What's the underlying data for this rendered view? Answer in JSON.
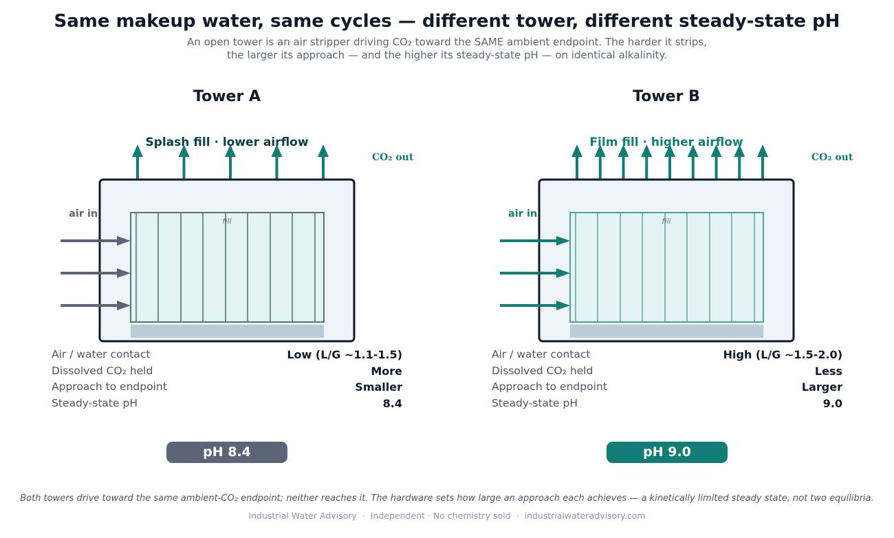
{
  "header": {
    "title": "Same makeup water, same cycles — different tower, different steady-state pH",
    "subtitle_line1": "An open tower is an air stripper driving CO₂ toward the SAME ambient endpoint. The harder it strips,",
    "subtitle_line2": "the larger its approach — and the higher its steady-state pH — on identical alkalinity."
  },
  "colors": {
    "navy": "#0f1b2d",
    "teal": "#127c77",
    "slate": "#5a6577",
    "tower_fill": "#eff4f8",
    "fill_media": "#e4f3f3",
    "basin": "#b9ccd8"
  },
  "towers": [
    {
      "name": "Tower A",
      "fill_caption": "Splash fill · lower airflow",
      "air_in_label": "air in",
      "co2_out_label": "CO₂ out",
      "fill_label": "fill",
      "co2_out_arrow_count": 5,
      "air_in_arrow_count": 3,
      "stats": [
        {
          "label": "Air / water contact",
          "value": "Low (L/G ~1.1-1.5)"
        },
        {
          "label": "Dissolved CO₂ held",
          "value": "More"
        },
        {
          "label": "Approach to endpoint",
          "value": "Smaller"
        },
        {
          "label": "Steady-state pH",
          "value": "8.4"
        }
      ],
      "ph_badge": "pH 8.4"
    },
    {
      "name": "Tower B",
      "fill_caption": "Film fill · higher airflow",
      "air_in_label": "air in",
      "co2_out_label": "CO₂ out",
      "fill_label": "fill",
      "co2_out_arrow_count": 9,
      "air_in_arrow_count": 3,
      "stats": [
        {
          "label": "Air / water contact",
          "value": "High (L/G ~1.5-2.0)"
        },
        {
          "label": "Dissolved CO₂ held",
          "value": "Less"
        },
        {
          "label": "Approach to endpoint",
          "value": "Larger"
        },
        {
          "label": "Steady-state pH",
          "value": "9.0"
        }
      ],
      "ph_badge": "pH 9.0"
    }
  ],
  "footnote": "Both towers drive toward the same ambient-CO₂ endpoint; neither reaches it. The hardware sets how large an approach each achieves — a kinetically limited steady state, not two equilibria.",
  "footer": {
    "org": "Industrial Water Advisory",
    "tagline": "Independent · No chemistry sold",
    "site": "industrialwateradvisory.com"
  }
}
